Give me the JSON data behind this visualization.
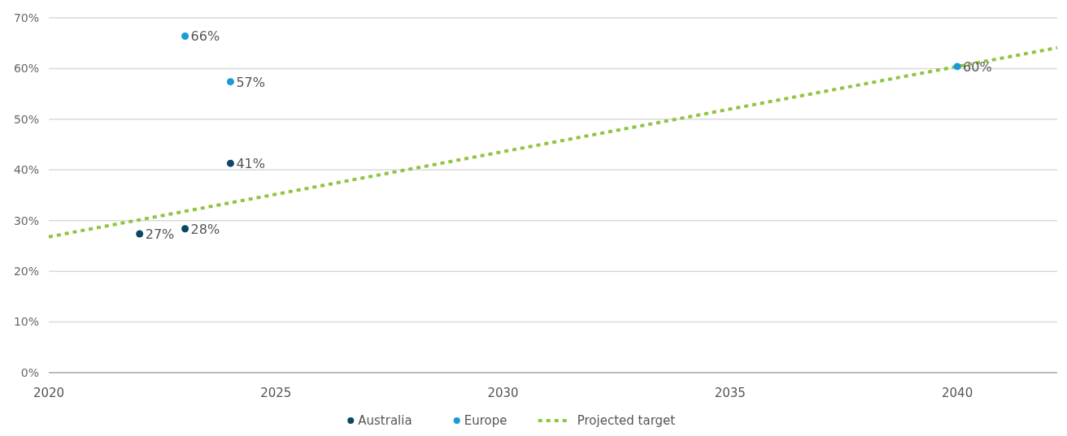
{
  "chart_data": {
    "type": "scatter",
    "xlim": [
      2020,
      2042.2
    ],
    "xticks": [
      2020,
      2025,
      2030,
      2035,
      2040
    ],
    "ylim": [
      0,
      70
    ],
    "yticks": [
      {
        "value": 0,
        "label": "0%"
      },
      {
        "value": 10,
        "label": "10%"
      },
      {
        "value": 20,
        "label": "20%"
      },
      {
        "value": 30,
        "label": "30%"
      },
      {
        "value": 40,
        "label": "40%"
      },
      {
        "value": 50,
        "label": "50%"
      },
      {
        "value": 60,
        "label": "60%"
      },
      {
        "value": 70,
        "label": "70%"
      }
    ],
    "grid": "y",
    "legend": "bottom",
    "marker": "circle",
    "series": [
      {
        "name": "Australia",
        "color": "#0e4763",
        "x": [
          2022,
          2023,
          2024
        ],
        "values": [
          27.4,
          28.4,
          41.3
        ],
        "value_labels": [
          "27%",
          "28%",
          "41%"
        ]
      },
      {
        "name": "Europe",
        "color": "#1a9ad6",
        "x": [
          2023,
          2024,
          2040
        ],
        "values": [
          66.4,
          57.4,
          60.4
        ],
        "value_labels": [
          "66%",
          "57%",
          "60%"
        ]
      },
      {
        "name": "Projected target",
        "type": "line",
        "color": "#8dc63f",
        "line_style": "dotted",
        "marker": "none",
        "x": [
          2020,
          2042.2
        ],
        "values": [
          26.8,
          64.1
        ]
      }
    ]
  }
}
